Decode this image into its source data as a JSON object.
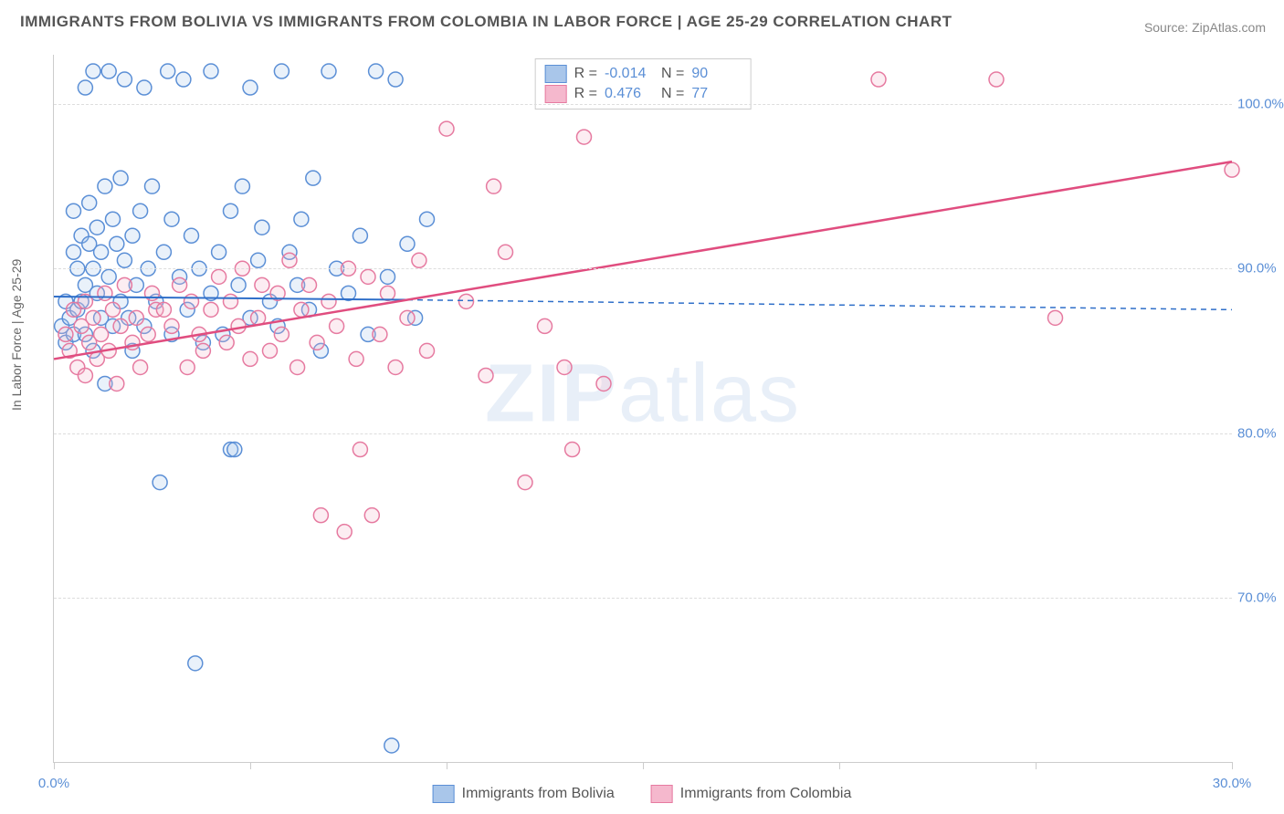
{
  "title": "IMMIGRANTS FROM BOLIVIA VS IMMIGRANTS FROM COLOMBIA IN LABOR FORCE | AGE 25-29 CORRELATION CHART",
  "source": "Source: ZipAtlas.com",
  "ylabel": "In Labor Force | Age 25-29",
  "watermark_bold": "ZIP",
  "watermark_rest": "atlas",
  "chart": {
    "type": "scatter",
    "xlim": [
      0,
      30
    ],
    "ylim": [
      60,
      103
    ],
    "yticks": [
      70,
      80,
      90,
      100
    ],
    "ytick_labels": [
      "70.0%",
      "80.0%",
      "90.0%",
      "100.0%"
    ],
    "xticks": [
      0,
      5,
      10,
      15,
      20,
      25,
      30
    ],
    "xtick_labels": [
      "0.0%",
      "",
      "",
      "",
      "",
      "",
      "30.0%"
    ],
    "grid_color": "#dddddd",
    "axis_color": "#cccccc",
    "background": "#ffffff",
    "marker_radius": 8,
    "marker_stroke_width": 1.5,
    "marker_fill_opacity": 0.25,
    "series": [
      {
        "name": "Immigrants from Bolivia",
        "color_stroke": "#5b8fd6",
        "color_fill": "#a9c6ea",
        "R": "-0.014",
        "N": "90",
        "trend": {
          "x1": 0,
          "y1": 88.3,
          "x2": 9,
          "y2": 88.1,
          "dash_x2": 30,
          "dash_y2": 87.5,
          "color": "#2f6fc9",
          "width": 2
        },
        "points": [
          [
            0.2,
            86.5
          ],
          [
            0.3,
            88.0
          ],
          [
            0.3,
            85.5
          ],
          [
            0.4,
            87.0
          ],
          [
            0.5,
            91.0
          ],
          [
            0.5,
            86.0
          ],
          [
            0.5,
            93.5
          ],
          [
            0.6,
            90.0
          ],
          [
            0.6,
            87.5
          ],
          [
            0.7,
            92.0
          ],
          [
            0.7,
            88.0
          ],
          [
            0.8,
            101.0
          ],
          [
            0.8,
            89.0
          ],
          [
            0.8,
            86.0
          ],
          [
            0.9,
            94.0
          ],
          [
            0.9,
            91.5
          ],
          [
            1.0,
            90.0
          ],
          [
            1.0,
            102.0
          ],
          [
            1.0,
            85.0
          ],
          [
            1.1,
            88.5
          ],
          [
            1.1,
            92.5
          ],
          [
            1.2,
            87.0
          ],
          [
            1.2,
            91.0
          ],
          [
            1.3,
            83.0
          ],
          [
            1.3,
            95.0
          ],
          [
            1.4,
            102.0
          ],
          [
            1.4,
            89.5
          ],
          [
            1.5,
            93.0
          ],
          [
            1.5,
            86.5
          ],
          [
            1.6,
            91.5
          ],
          [
            1.7,
            95.5
          ],
          [
            1.7,
            88.0
          ],
          [
            1.8,
            90.5
          ],
          [
            1.8,
            101.5
          ],
          [
            1.9,
            87.0
          ],
          [
            2.0,
            92.0
          ],
          [
            2.0,
            85.0
          ],
          [
            2.1,
            89.0
          ],
          [
            2.2,
            93.5
          ],
          [
            2.3,
            101.0
          ],
          [
            2.3,
            86.5
          ],
          [
            2.4,
            90.0
          ],
          [
            2.5,
            95.0
          ],
          [
            2.6,
            88.0
          ],
          [
            2.7,
            77.0
          ],
          [
            2.8,
            91.0
          ],
          [
            2.9,
            102.0
          ],
          [
            3.0,
            86.0
          ],
          [
            3.0,
            93.0
          ],
          [
            3.2,
            89.5
          ],
          [
            3.3,
            101.5
          ],
          [
            3.4,
            87.5
          ],
          [
            3.5,
            92.0
          ],
          [
            3.6,
            66.0
          ],
          [
            3.7,
            90.0
          ],
          [
            3.8,
            85.5
          ],
          [
            4.0,
            88.5
          ],
          [
            4.0,
            102.0
          ],
          [
            4.2,
            91.0
          ],
          [
            4.3,
            86.0
          ],
          [
            4.5,
            93.5
          ],
          [
            4.5,
            79.0
          ],
          [
            4.6,
            79.0
          ],
          [
            4.7,
            89.0
          ],
          [
            4.8,
            95.0
          ],
          [
            5.0,
            87.0
          ],
          [
            5.0,
            101.0
          ],
          [
            5.2,
            90.5
          ],
          [
            5.3,
            92.5
          ],
          [
            5.5,
            88.0
          ],
          [
            5.7,
            86.5
          ],
          [
            5.8,
            102.0
          ],
          [
            6.0,
            91.0
          ],
          [
            6.2,
            89.0
          ],
          [
            6.3,
            93.0
          ],
          [
            6.5,
            87.5
          ],
          [
            6.6,
            95.5
          ],
          [
            6.8,
            85.0
          ],
          [
            7.0,
            102.0
          ],
          [
            7.2,
            90.0
          ],
          [
            7.5,
            88.5
          ],
          [
            7.8,
            92.0
          ],
          [
            8.0,
            86.0
          ],
          [
            8.2,
            102.0
          ],
          [
            8.5,
            89.5
          ],
          [
            8.6,
            61.0
          ],
          [
            8.7,
            101.5
          ],
          [
            9.0,
            91.5
          ],
          [
            9.2,
            87.0
          ],
          [
            9.5,
            93.0
          ]
        ]
      },
      {
        "name": "Immigrants from Colombia",
        "color_stroke": "#e67aa0",
        "color_fill": "#f5b8cd",
        "R": "0.476",
        "N": "77",
        "trend": {
          "x1": 0,
          "y1": 84.5,
          "x2": 30,
          "y2": 96.5,
          "color": "#e04d7f",
          "width": 2.5
        },
        "points": [
          [
            0.3,
            86.0
          ],
          [
            0.4,
            85.0
          ],
          [
            0.5,
            87.5
          ],
          [
            0.6,
            84.0
          ],
          [
            0.7,
            86.5
          ],
          [
            0.8,
            88.0
          ],
          [
            0.8,
            83.5
          ],
          [
            0.9,
            85.5
          ],
          [
            1.0,
            87.0
          ],
          [
            1.1,
            84.5
          ],
          [
            1.2,
            86.0
          ],
          [
            1.3,
            88.5
          ],
          [
            1.4,
            85.0
          ],
          [
            1.5,
            87.5
          ],
          [
            1.6,
            83.0
          ],
          [
            1.7,
            86.5
          ],
          [
            1.8,
            89.0
          ],
          [
            2.0,
            85.5
          ],
          [
            2.1,
            87.0
          ],
          [
            2.2,
            84.0
          ],
          [
            2.4,
            86.0
          ],
          [
            2.5,
            88.5
          ],
          [
            2.6,
            87.5
          ],
          [
            2.8,
            87.5
          ],
          [
            3.0,
            86.5
          ],
          [
            3.2,
            89.0
          ],
          [
            3.4,
            84.0
          ],
          [
            3.5,
            88.0
          ],
          [
            3.7,
            86.0
          ],
          [
            3.8,
            85.0
          ],
          [
            4.0,
            87.5
          ],
          [
            4.2,
            89.5
          ],
          [
            4.4,
            85.5
          ],
          [
            4.5,
            88.0
          ],
          [
            4.7,
            86.5
          ],
          [
            4.8,
            90.0
          ],
          [
            5.0,
            84.5
          ],
          [
            5.2,
            87.0
          ],
          [
            5.3,
            89.0
          ],
          [
            5.5,
            85.0
          ],
          [
            5.7,
            88.5
          ],
          [
            5.8,
            86.0
          ],
          [
            6.0,
            90.5
          ],
          [
            6.2,
            84.0
          ],
          [
            6.3,
            87.5
          ],
          [
            6.5,
            89.0
          ],
          [
            6.7,
            85.5
          ],
          [
            6.8,
            75.0
          ],
          [
            7.0,
            88.0
          ],
          [
            7.2,
            86.5
          ],
          [
            7.4,
            74.0
          ],
          [
            7.5,
            90.0
          ],
          [
            7.7,
            84.5
          ],
          [
            7.8,
            79.0
          ],
          [
            8.0,
            89.5
          ],
          [
            8.1,
            75.0
          ],
          [
            8.3,
            86.0
          ],
          [
            8.5,
            88.5
          ],
          [
            8.7,
            84.0
          ],
          [
            9.0,
            87.0
          ],
          [
            9.3,
            90.5
          ],
          [
            9.5,
            85.0
          ],
          [
            10.0,
            98.5
          ],
          [
            10.5,
            88.0
          ],
          [
            11.0,
            83.5
          ],
          [
            11.2,
            95.0
          ],
          [
            11.5,
            91.0
          ],
          [
            12.0,
            77.0
          ],
          [
            12.5,
            86.5
          ],
          [
            13.0,
            84.0
          ],
          [
            13.2,
            79.0
          ],
          [
            13.5,
            98.0
          ],
          [
            14.0,
            83.0
          ],
          [
            21.0,
            101.5
          ],
          [
            24.0,
            101.5
          ],
          [
            25.5,
            87.0
          ],
          [
            30.0,
            96.0
          ]
        ]
      }
    ]
  },
  "stats_legend": {
    "rows": [
      {
        "swatch_fill": "#a9c6ea",
        "swatch_stroke": "#5b8fd6",
        "r_label": "R =",
        "r_val": "-0.014",
        "n_label": "N =",
        "n_val": "90"
      },
      {
        "swatch_fill": "#f5b8cd",
        "swatch_stroke": "#e67aa0",
        "r_label": "R =",
        "r_val": "0.476",
        "n_label": "N =",
        "n_val": "77"
      }
    ]
  },
  "bottom_legend": [
    {
      "swatch_fill": "#a9c6ea",
      "swatch_stroke": "#5b8fd6",
      "label": "Immigrants from Bolivia"
    },
    {
      "swatch_fill": "#f5b8cd",
      "swatch_stroke": "#e67aa0",
      "label": "Immigrants from Colombia"
    }
  ]
}
